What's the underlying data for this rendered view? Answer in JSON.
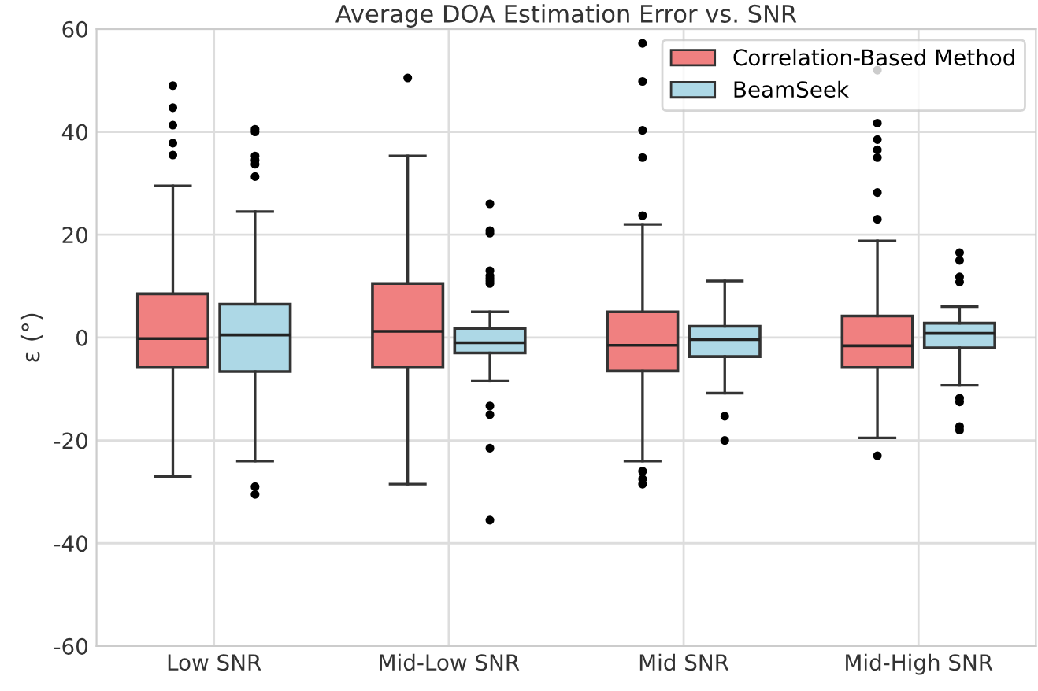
{
  "chart_data": {
    "type": "box",
    "title": "Average DOA Estimation Error vs. SNR",
    "ylabel": "ε (°)",
    "categories": [
      "Low SNR",
      "Mid-Low SNR",
      "Mid SNR",
      "Mid-High SNR"
    ],
    "ylim": [
      -60,
      60
    ],
    "yticks": [
      -60,
      -40,
      -20,
      0,
      20,
      40,
      60
    ],
    "grid": true,
    "legend": "top right",
    "series": [
      {
        "name": "Correlation-Based Method",
        "color": "#f08080",
        "boxes": [
          {
            "low": -27,
            "q1": -5.8,
            "median": -0.2,
            "q3": 8.5,
            "high": 29.5,
            "outliers": [
              35.5,
              37.8,
              41.3,
              44.7,
              49
            ]
          },
          {
            "low": -28.5,
            "q1": -5.8,
            "median": 1.2,
            "q3": 10.5,
            "high": 35.3,
            "outliers": [
              50.5
            ]
          },
          {
            "low": -24,
            "q1": -6.5,
            "median": -1.5,
            "q3": 5,
            "high": 22,
            "outliers": [
              57.2,
              49.8,
              40.3,
              35,
              23.7,
              -26,
              -27.5,
              -28.5
            ]
          },
          {
            "low": -19.5,
            "q1": -5.8,
            "median": -1.6,
            "q3": 4.2,
            "high": 18.8,
            "outliers": [
              52,
              41.7,
              38.5,
              36.5,
              35,
              28.2,
              23,
              -23
            ]
          }
        ]
      },
      {
        "name": "BeamSeek",
        "color": "#add8e6",
        "boxes": [
          {
            "low": -24,
            "q1": -6.6,
            "median": 0.5,
            "q3": 6.5,
            "high": 24.5,
            "outliers": [
              31.3,
              33.7,
              34.5,
              35.3,
              40,
              40.5,
              -29,
              -30.5
            ]
          },
          {
            "low": -8.5,
            "q1": -3,
            "median": -1,
            "q3": 1.8,
            "high": 5,
            "outliers": [
              26,
              20.8,
              20.3,
              13,
              12,
              11.5,
              11,
              10.5,
              -13.3,
              -15,
              -21.5,
              -35.5
            ]
          },
          {
            "low": -10.8,
            "q1": -3.7,
            "median": -0.4,
            "q3": 2.2,
            "high": 11,
            "outliers": [
              -15.3,
              -20
            ]
          },
          {
            "low": -9.3,
            "q1": -2,
            "median": 0.8,
            "q3": 2.8,
            "high": 6,
            "outliers": [
              16.5,
              15,
              11.8,
              10.8,
              -11.8,
              -12.5,
              -17.3,
              -18
            ]
          }
        ]
      }
    ]
  }
}
